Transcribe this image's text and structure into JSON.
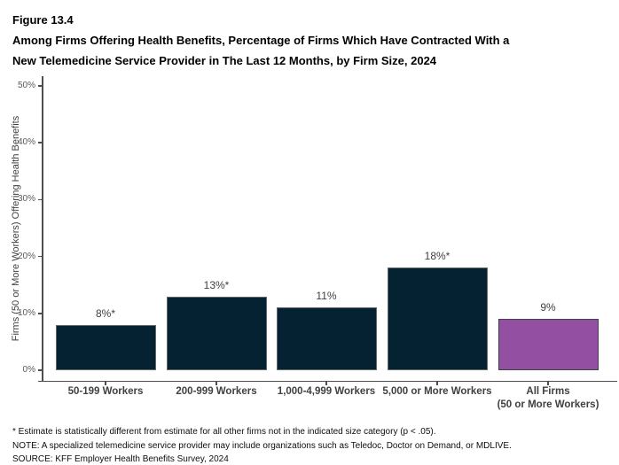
{
  "header": {
    "figure_label": "Figure 13.4",
    "title_lines": [
      "Among Firms Offering Health Benefits, Percentage of Firms Which Have Contracted With a",
      "New Telemedicine Service Provider in The Last 12 Months, by Firm Size, 2024"
    ]
  },
  "chart_data": {
    "type": "bar",
    "title": "Among Firms Offering Health Benefits, Percentage of Firms Which Have Contracted With a New Telemedicine Service Provider in The Last 12 Months, by Firm Size, 2024",
    "categories": [
      "50-199 Workers",
      "200-999 Workers",
      "1,000-4,999 Workers",
      "5,000 or More Workers",
      "All Firms\n(50 or More Workers)"
    ],
    "values": [
      8,
      13,
      11,
      18,
      9
    ],
    "data_labels": [
      "8%*",
      "13%*",
      "11%",
      "18%*",
      "9%"
    ],
    "xlabel": "",
    "ylabel": "Firms (50 or More Workers) Offering Health Benefits",
    "ylim": [
      0,
      50
    ],
    "ytick_values": [
      0,
      10,
      20,
      30,
      40,
      50
    ],
    "ytick_labels": [
      "0%",
      "10%",
      "20%",
      "30%",
      "40%",
      "50%"
    ],
    "grid": false,
    "legend": "none",
    "bar_colors": [
      "#052233",
      "#052233",
      "#052233",
      "#052233",
      "#9350A2"
    ],
    "bar_border_colors": [
      "#64696E",
      "#64696E",
      "#64696E",
      "#64696E",
      "#41414B"
    ]
  },
  "footnotes": [
    "* Estimate is statistically different from estimate for all other firms not in the indicated size category (p < .05).",
    "NOTE: A specialized telemedicine service provider may include organizations such as Teledoc, Doctor on Demand, or MDLIVE.",
    "SOURCE: KFF Employer Health Benefits Survey, 2024"
  ]
}
